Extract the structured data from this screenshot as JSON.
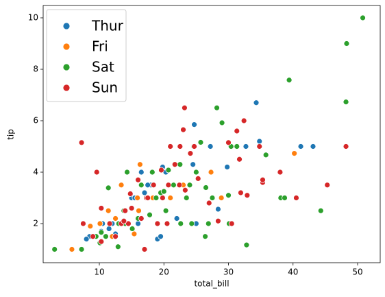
{
  "chart_data": {
    "type": "scatter",
    "x_label": "total_bill",
    "y_label": "tip",
    "xlim": [
      1.3,
      53.5
    ],
    "ylim": [
      0.48,
      10.48
    ],
    "xticks": [
      10,
      20,
      30,
      40,
      50
    ],
    "yticks": [
      2,
      4,
      6,
      8,
      10
    ],
    "legend": "upper left",
    "series": [
      {
        "name": "Thur",
        "color": "#1f77b4",
        "x": [
          34.3,
          24.7,
          29.8,
          41.2,
          43.1,
          32.7,
          34.8,
          27.2,
          19.8,
          20.3,
          16.5,
          18.0,
          17.5,
          15.0,
          16.0,
          13.0,
          12.5,
          10.3,
          8.5,
          8.0,
          11.0,
          14.0,
          19.0,
          19.5,
          22.0,
          28.4,
          25.0,
          12.0,
          15.5,
          17.0,
          14.5,
          11.5,
          7.5,
          10.5,
          21.0,
          24.5
        ],
        "y": [
          6.7,
          5.85,
          4.2,
          5.0,
          5.0,
          5.0,
          5.2,
          5.0,
          4.2,
          4.0,
          4.0,
          3.5,
          3.5,
          3.0,
          2.0,
          2.0,
          1.6,
          1.7,
          1.5,
          1.4,
          1.5,
          2.5,
          1.4,
          1.5,
          2.2,
          2.56,
          2.0,
          2.0,
          3.0,
          3.2,
          2.0,
          1.8,
          2.0,
          2.0,
          3.0,
          4.3
        ]
      },
      {
        "name": "Fri",
        "color": "#ff7f0e",
        "x": [
          40.2,
          16.3,
          28.9,
          27.3,
          12.5,
          13.4,
          15.4,
          5.75,
          8.6,
          10.1,
          11.4,
          16.1,
          18.3,
          21.0,
          22.5,
          12.0,
          13.4,
          15.9,
          23.0
        ],
        "y": [
          4.73,
          4.3,
          3.0,
          4.0,
          2.2,
          3.5,
          1.6,
          1.0,
          1.9,
          2.0,
          2.5,
          2.5,
          3.0,
          3.0,
          3.5,
          1.5,
          2.0,
          3.0,
          3.5
        ]
      },
      {
        "name": "Sat",
        "color": "#2ca02c",
        "x": [
          50.8,
          48.3,
          39.4,
          48.2,
          28.2,
          29.0,
          25.7,
          30.4,
          31.3,
          35.8,
          24.6,
          20.7,
          22.5,
          18.2,
          14.3,
          11.4,
          38.1,
          38.7,
          44.3,
          32.8,
          26.4,
          3.07,
          7.25,
          10.1,
          10.3,
          12.9,
          13.0,
          15.1,
          17.8,
          20.3,
          22.6,
          24.3,
          26.9,
          30.1,
          27.5,
          24.0,
          21.5,
          18.8,
          16.0,
          14.0,
          11.0,
          9.5,
          13.8,
          19.5,
          23.5,
          25.0,
          26.5,
          30.0,
          20.0,
          16.5
        ],
        "y": [
          10.0,
          9.0,
          7.58,
          6.73,
          6.5,
          5.92,
          5.16,
          5.0,
          5.0,
          4.67,
          5.0,
          4.08,
          4.3,
          4.0,
          4.0,
          3.39,
          3.0,
          3.0,
          2.5,
          1.17,
          1.5,
          1.0,
          1.0,
          1.25,
          1.66,
          1.1,
          2.0,
          1.8,
          2.34,
          2.5,
          2.0,
          2.0,
          2.0,
          2.0,
          3.0,
          3.5,
          3.5,
          3.0,
          2.2,
          2.0,
          1.5,
          1.5,
          2.5,
          3.2,
          3.0,
          4.0,
          3.4,
          3.1,
          3.25,
          3.5
        ]
      },
      {
        "name": "Sun",
        "color": "#d62728",
        "x": [
          23.2,
          32.4,
          31.3,
          34.8,
          48.2,
          30.0,
          7.25,
          23.0,
          21.0,
          22.5,
          24.1,
          38.0,
          40.5,
          45.3,
          35.3,
          35.3,
          32.9,
          31.9,
          31.7,
          9.6,
          20.7,
          25.3,
          23.3,
          14.8,
          17.3,
          19.8,
          16.0,
          10.3,
          7.5,
          9.0,
          10.3,
          13.4,
          14.5,
          16.5,
          17.5,
          18.4,
          19.6,
          24.7,
          28.4,
          30.5,
          20.5,
          15.0,
          12.5,
          17.0,
          11.6,
          13.8,
          21.7,
          22.4,
          27.0,
          19.0,
          14.0
        ],
        "y": [
          6.5,
          6.0,
          5.6,
          5.0,
          5.0,
          5.15,
          5.15,
          5.65,
          5.0,
          5.0,
          4.73,
          4.0,
          3.0,
          3.5,
          3.6,
          3.7,
          3.1,
          3.2,
          4.5,
          4.0,
          3.5,
          3.75,
          3.3,
          3.16,
          3.0,
          3.0,
          3.7,
          2.6,
          2.0,
          1.5,
          1.3,
          2.0,
          2.0,
          2.2,
          3.0,
          3.5,
          4.08,
          5.0,
          2.1,
          2.0,
          2.0,
          2.6,
          1.5,
          1.0,
          2.0,
          2.1,
          4.3,
          3.5,
          2.8,
          2.0,
          2.5
        ]
      }
    ]
  }
}
